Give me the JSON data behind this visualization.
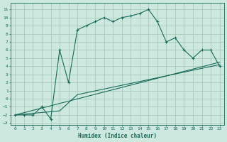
{
  "xlabel": "Humidex (Indice chaleur)",
  "bg_color": "#cce8df",
  "line_color": "#1a6b5a",
  "grid_color": "#aaccbb",
  "xlim": [
    -0.5,
    23.5
  ],
  "ylim": [
    -3.2,
    11.8
  ],
  "xticks": [
    0,
    1,
    2,
    3,
    4,
    5,
    6,
    7,
    8,
    9,
    10,
    11,
    12,
    13,
    14,
    15,
    16,
    17,
    18,
    19,
    20,
    21,
    22,
    23
  ],
  "yticks": [
    -3,
    -2,
    -1,
    0,
    1,
    2,
    3,
    4,
    5,
    6,
    7,
    8,
    9,
    10,
    11
  ],
  "curve1_x": [
    0,
    1,
    2,
    3,
    4,
    5,
    6,
    7,
    8,
    9,
    10,
    11,
    12,
    13,
    14,
    15,
    16,
    17,
    18,
    19,
    20,
    21,
    22,
    23
  ],
  "curve1_y": [
    -2,
    -2,
    -2,
    -1,
    -2.5,
    6,
    2,
    8.5,
    9,
    9.5,
    10,
    9.5,
    10,
    10.2,
    10.5,
    11,
    9.5,
    7,
    7.5,
    6,
    5,
    6,
    6,
    4
  ],
  "curve2_x": [
    0,
    5,
    6,
    7,
    23
  ],
  "curve2_y": [
    -2,
    -1.5,
    -0.5,
    0.5,
    4.2
  ],
  "curve3_x": [
    0,
    23
  ],
  "curve3_y": [
    -2,
    4.5
  ]
}
